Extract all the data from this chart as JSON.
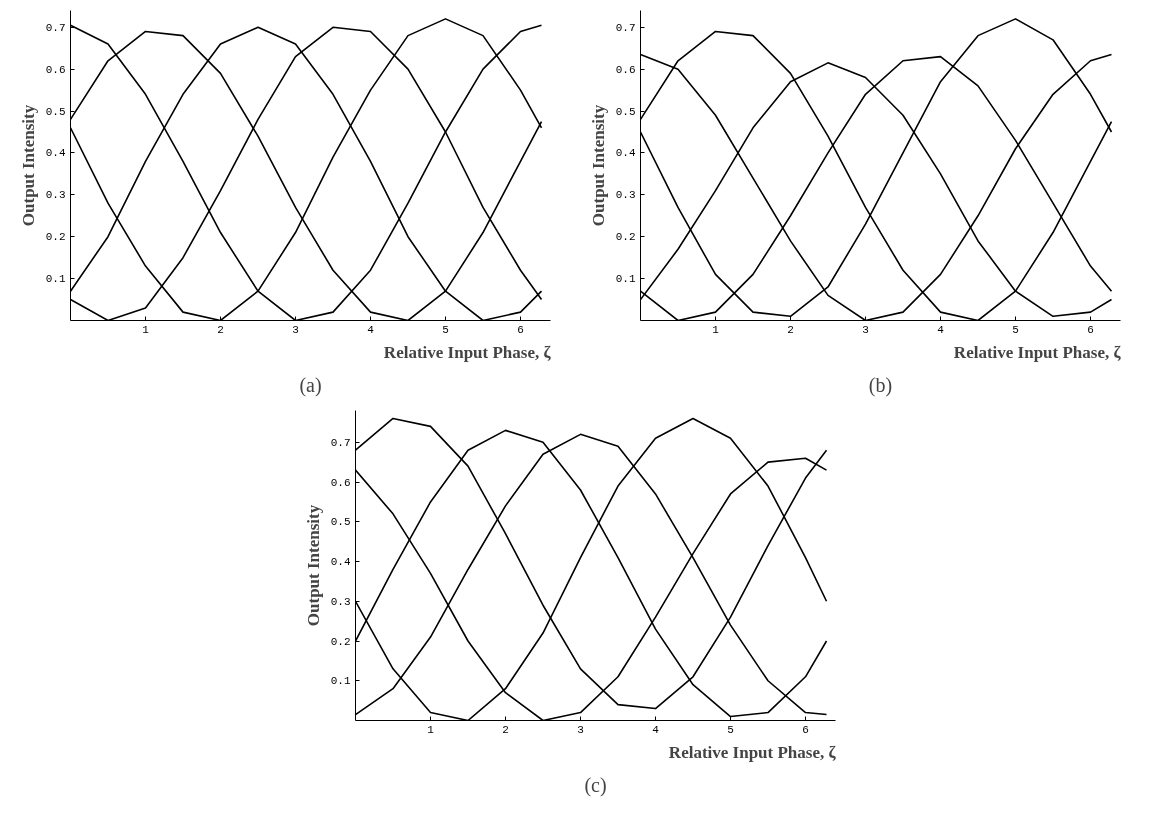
{
  "chart_data": [
    {
      "type": "line",
      "xlabel": "Relative Input Phase, ζ",
      "ylabel": "Output Intensity",
      "annotations": [
        "(a)"
      ],
      "x": [
        0,
        0.5,
        1,
        1.5,
        2,
        2.5,
        3,
        3.5,
        4,
        4.5,
        5,
        5.5,
        6,
        6.28
      ],
      "series": [
        {
          "color": "#000000",
          "values": [
            0.705,
            0.66,
            0.54,
            0.38,
            0.21,
            0.07,
            0.0,
            0.02,
            0.12,
            0.28,
            0.45,
            0.6,
            0.69,
            0.705
          ]
        },
        {
          "color": "#000000",
          "values": [
            0.48,
            0.62,
            0.69,
            0.68,
            0.59,
            0.44,
            0.27,
            0.12,
            0.02,
            0.0,
            0.07,
            0.21,
            0.38,
            0.475
          ]
        },
        {
          "color": "#000000",
          "values": [
            0.07,
            0.2,
            0.38,
            0.54,
            0.66,
            0.7,
            0.66,
            0.54,
            0.38,
            0.2,
            0.07,
            0.0,
            0.02,
            0.07
          ]
        },
        {
          "color": "#000000",
          "values": [
            0.05,
            0.0,
            0.03,
            0.15,
            0.31,
            0.48,
            0.63,
            0.7,
            0.69,
            0.6,
            0.45,
            0.27,
            0.12,
            0.05
          ]
        },
        {
          "color": "#000000",
          "values": [
            0.46,
            0.28,
            0.13,
            0.02,
            0.0,
            0.07,
            0.21,
            0.39,
            0.55,
            0.68,
            0.72,
            0.68,
            0.55,
            0.46
          ]
        }
      ],
      "xlim": [
        0,
        6.4
      ],
      "ylim": [
        0,
        0.74
      ],
      "xticks": [
        1,
        2,
        3,
        4,
        5,
        6
      ],
      "yticks": [
        0.1,
        0.2,
        0.3,
        0.4,
        0.5,
        0.6,
        0.7
      ]
    },
    {
      "type": "line",
      "xlabel": "Relative Input Phase, ζ",
      "ylabel": "Output Intensity",
      "annotations": [
        "(b)"
      ],
      "x": [
        0,
        0.5,
        1,
        1.5,
        2,
        2.5,
        3,
        3.5,
        4,
        4.5,
        5,
        5.5,
        6,
        6.28
      ],
      "series": [
        {
          "color": "#000000",
          "values": [
            0.635,
            0.6,
            0.49,
            0.34,
            0.19,
            0.06,
            0.0,
            0.02,
            0.11,
            0.25,
            0.41,
            0.54,
            0.62,
            0.635
          ]
        },
        {
          "color": "#000000",
          "values": [
            0.48,
            0.62,
            0.69,
            0.68,
            0.59,
            0.44,
            0.27,
            0.12,
            0.02,
            0.0,
            0.07,
            0.21,
            0.38,
            0.475
          ]
        },
        {
          "color": "#000000",
          "values": [
            0.05,
            0.17,
            0.31,
            0.46,
            0.57,
            0.615,
            0.58,
            0.49,
            0.35,
            0.19,
            0.07,
            0.01,
            0.02,
            0.05
          ]
        },
        {
          "color": "#000000",
          "values": [
            0.07,
            0.0,
            0.02,
            0.11,
            0.25,
            0.4,
            0.54,
            0.62,
            0.63,
            0.56,
            0.43,
            0.28,
            0.13,
            0.07
          ]
        },
        {
          "color": "#000000",
          "values": [
            0.45,
            0.27,
            0.11,
            0.02,
            0.01,
            0.08,
            0.23,
            0.4,
            0.57,
            0.68,
            0.72,
            0.67,
            0.54,
            0.45
          ]
        }
      ],
      "xlim": [
        0,
        6.4
      ],
      "ylim": [
        0,
        0.74
      ],
      "xticks": [
        1,
        2,
        3,
        4,
        5,
        6
      ],
      "yticks": [
        0.1,
        0.2,
        0.3,
        0.4,
        0.5,
        0.6,
        0.7
      ]
    },
    {
      "type": "line",
      "xlabel": "Relative Input Phase, ζ",
      "ylabel": "Output Intensity",
      "annotations": [
        "(c)"
      ],
      "x": [
        0,
        0.5,
        1,
        1.5,
        2,
        2.5,
        3,
        3.5,
        4,
        4.5,
        5,
        5.5,
        6,
        6.28
      ],
      "series": [
        {
          "color": "#000000",
          "values": [
            0.68,
            0.76,
            0.74,
            0.64,
            0.47,
            0.29,
            0.13,
            0.04,
            0.03,
            0.11,
            0.26,
            0.44,
            0.61,
            0.68
          ]
        },
        {
          "color": "#000000",
          "values": [
            0.63,
            0.52,
            0.37,
            0.2,
            0.07,
            0.0,
            0.02,
            0.11,
            0.26,
            0.42,
            0.57,
            0.65,
            0.66,
            0.63
          ]
        },
        {
          "color": "#000000",
          "values": [
            0.3,
            0.13,
            0.02,
            0.0,
            0.08,
            0.22,
            0.41,
            0.59,
            0.71,
            0.76,
            0.71,
            0.59,
            0.41,
            0.3
          ]
        },
        {
          "color": "#000000",
          "values": [
            0.2,
            0.38,
            0.55,
            0.68,
            0.73,
            0.7,
            0.58,
            0.41,
            0.23,
            0.09,
            0.01,
            0.02,
            0.11,
            0.2
          ]
        },
        {
          "color": "#000000",
          "values": [
            0.015,
            0.08,
            0.21,
            0.38,
            0.54,
            0.67,
            0.72,
            0.69,
            0.57,
            0.41,
            0.24,
            0.1,
            0.02,
            0.015
          ]
        }
      ],
      "xlim": [
        0,
        6.4
      ],
      "ylim": [
        0,
        0.78
      ],
      "xticks": [
        1,
        2,
        3,
        4,
        5,
        6
      ],
      "yticks": [
        0.1,
        0.2,
        0.3,
        0.4,
        0.5,
        0.6,
        0.7
      ]
    }
  ]
}
